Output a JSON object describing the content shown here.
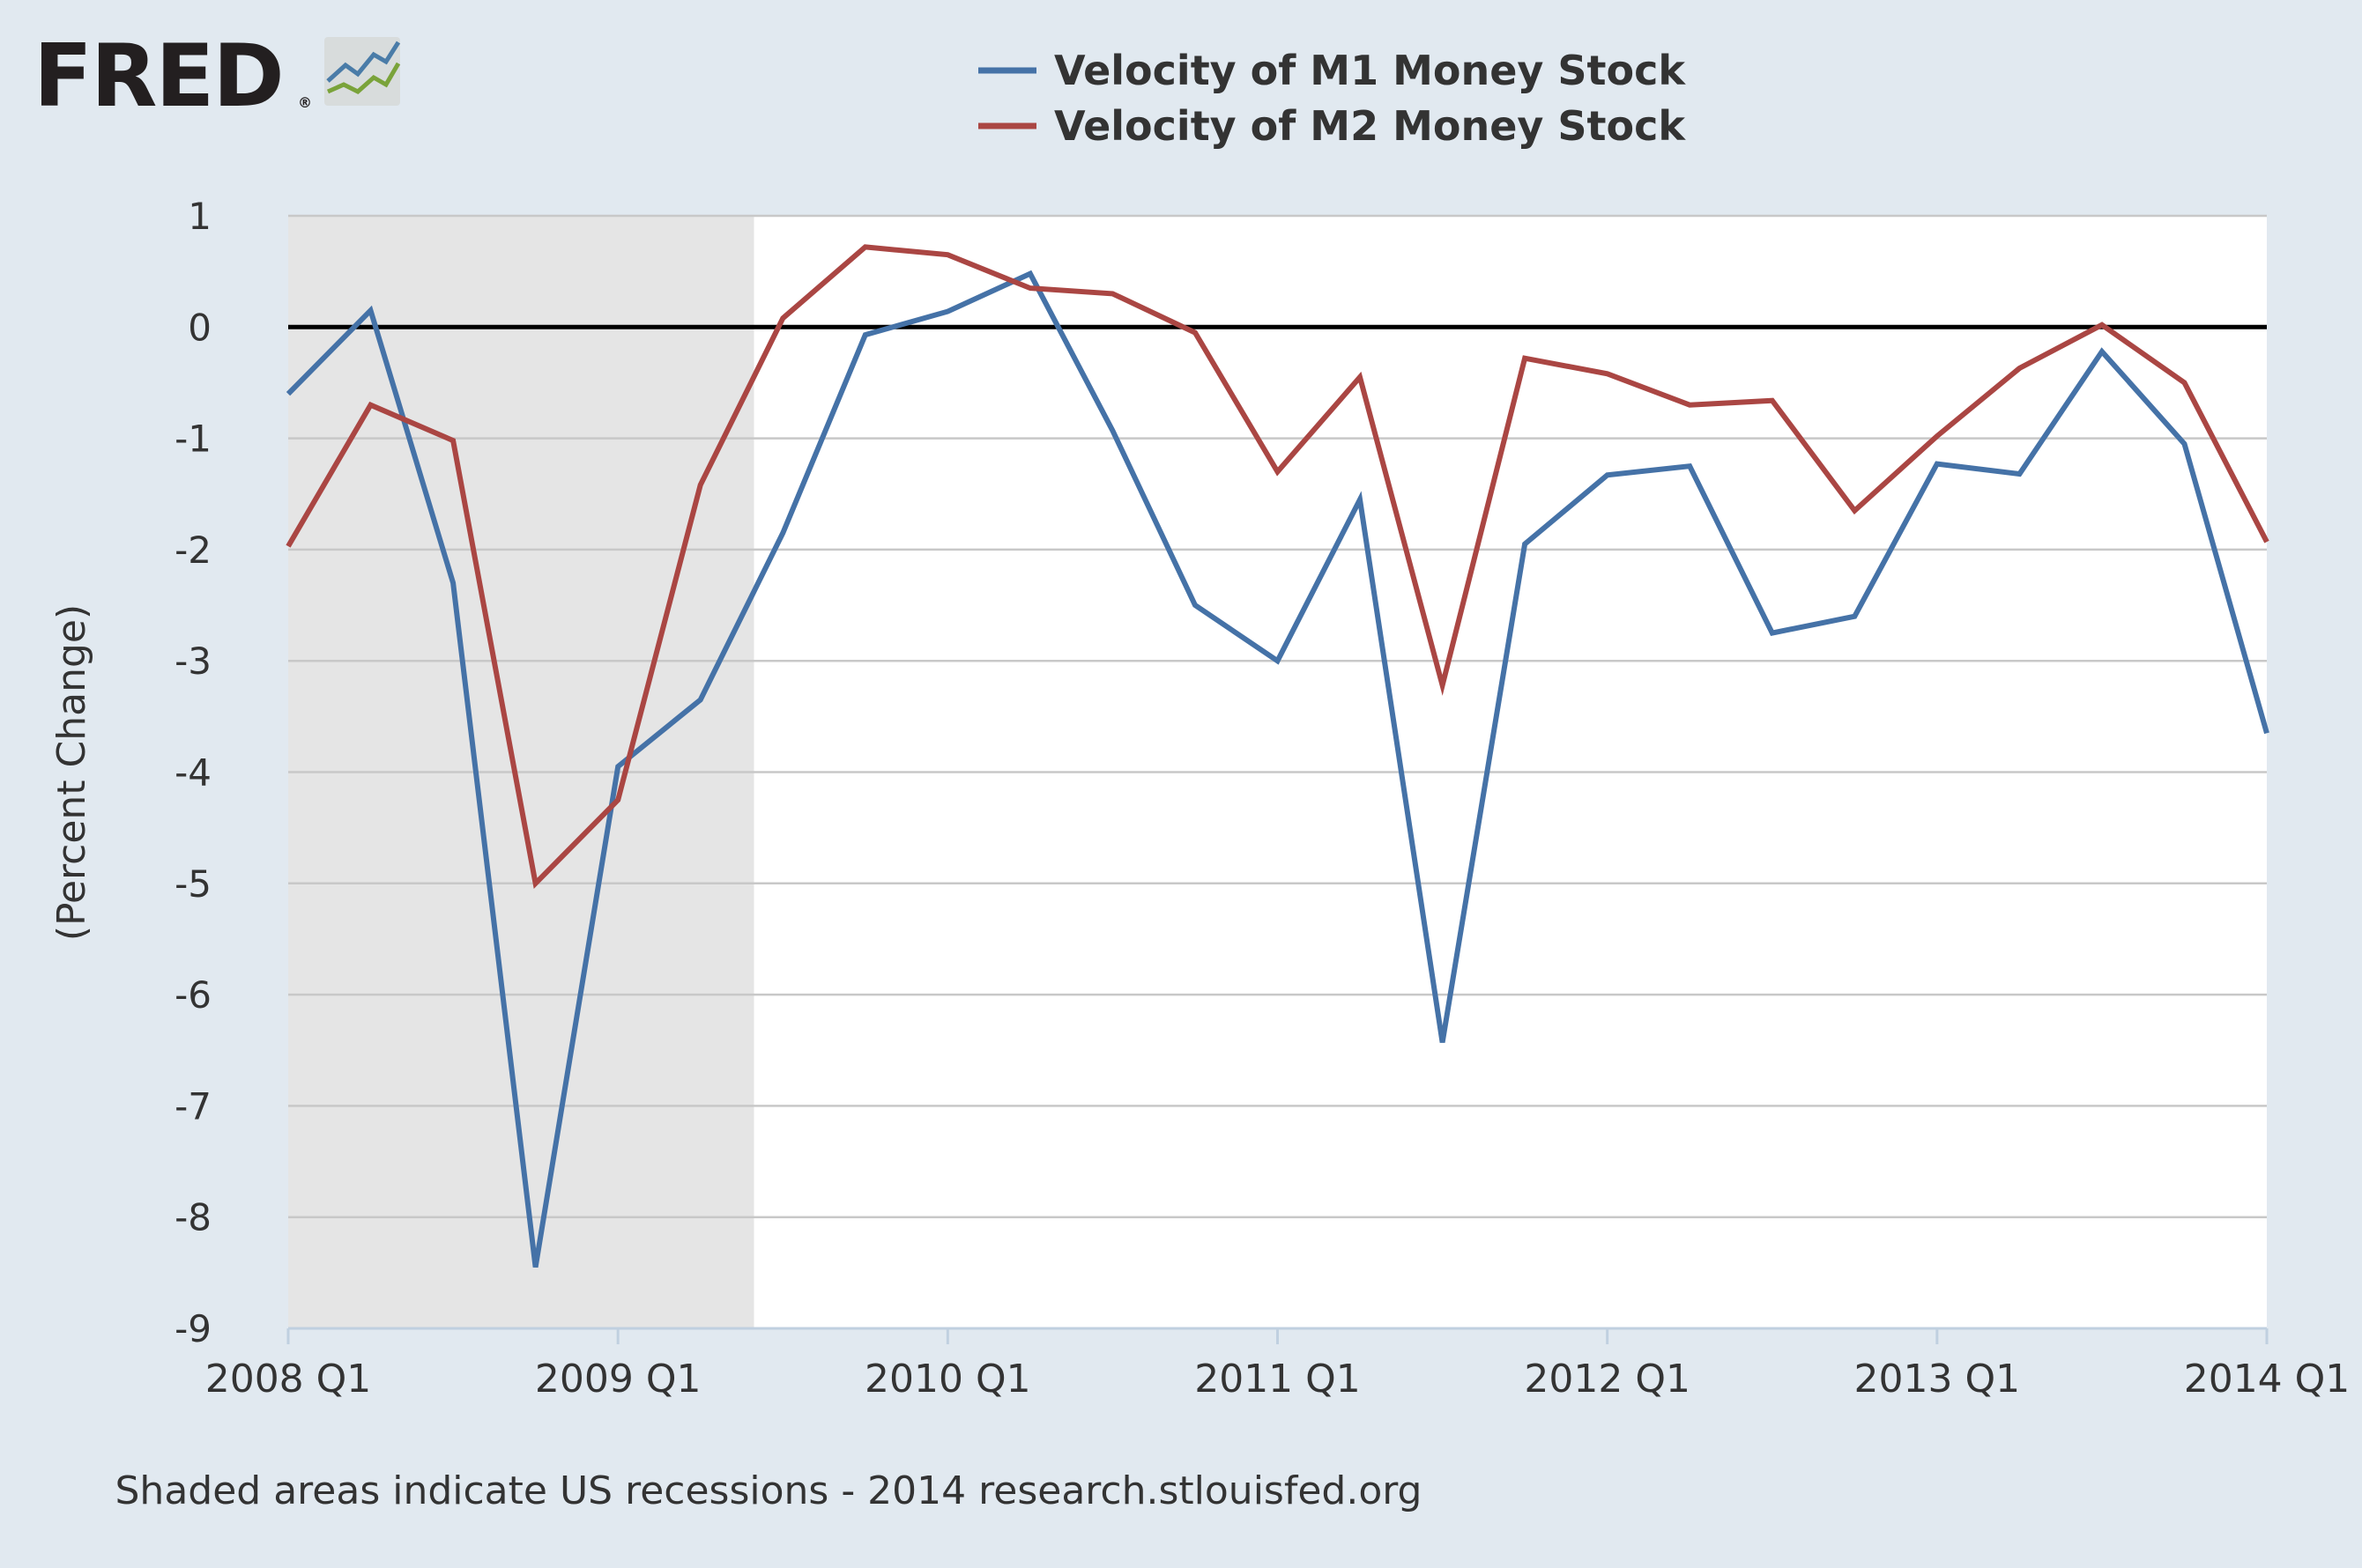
{
  "logo": {
    "text": "FRED",
    "registered": "®"
  },
  "footer": {
    "note": "Shaded areas indicate US recessions - 2014 research.stlouisfed.org"
  },
  "colors": {
    "background": "#e1e9f0",
    "plot_background": "#ffffff",
    "recession_shade": "#e5e5e5",
    "grid": "#c8c8c8",
    "zero_line": "#000000",
    "m1": "#4572a7",
    "m2": "#aa4643",
    "axis": "#c0d0e0"
  },
  "chart_data": {
    "type": "line",
    "title": "",
    "xlabel": "",
    "ylabel": "(Percent Change)",
    "ylim": [
      -9,
      1
    ],
    "yticks": [
      1,
      0,
      -1,
      -2,
      -3,
      -4,
      -5,
      -6,
      -7,
      -8,
      -9
    ],
    "xticks": [
      {
        "label": "2008 Q1",
        "q": 0
      },
      {
        "label": "2009 Q1",
        "q": 4
      },
      {
        "label": "2010 Q1",
        "q": 8
      },
      {
        "label": "2011 Q1",
        "q": 12
      },
      {
        "label": "2012 Q1",
        "q": 16
      },
      {
        "label": "2013 Q1",
        "q": 20
      },
      {
        "label": "2014 Q1",
        "q": 24
      }
    ],
    "x": [
      "2008 Q1",
      "2008 Q2",
      "2008 Q3",
      "2008 Q4",
      "2009 Q1",
      "2009 Q2",
      "2009 Q3",
      "2009 Q4",
      "2010 Q1",
      "2010 Q2",
      "2010 Q3",
      "2010 Q4",
      "2011 Q1",
      "2011 Q2",
      "2011 Q3",
      "2011 Q4",
      "2012 Q1",
      "2012 Q2",
      "2012 Q3",
      "2012 Q4",
      "2013 Q1",
      "2013 Q2",
      "2013 Q3",
      "2013 Q4",
      "2014 Q1"
    ],
    "grid": true,
    "legend_position": "top-center",
    "recession": {
      "start": "2008 Q1",
      "end": "2009 Q2"
    },
    "reference_line": 0,
    "series": [
      {
        "name": "Velocity of M1 Money Stock",
        "color": "#4572a7",
        "values": [
          -0.6,
          0.15,
          -2.3,
          -8.45,
          -3.95,
          -3.35,
          -1.85,
          -0.07,
          0.14,
          0.48,
          -0.93,
          -2.5,
          -3.0,
          -1.55,
          -6.43,
          -1.95,
          -1.33,
          -1.25,
          -2.75,
          -2.6,
          -1.23,
          -1.32,
          -0.22,
          -1.05,
          -3.65
        ]
      },
      {
        "name": "Velocity of M2 Money Stock",
        "color": "#aa4643",
        "values": [
          -1.97,
          -0.7,
          -1.02,
          -5.0,
          -4.25,
          -1.42,
          0.08,
          0.72,
          0.65,
          0.35,
          0.3,
          -0.05,
          -1.3,
          -0.45,
          -3.22,
          -0.28,
          -0.42,
          -0.7,
          -0.66,
          -1.65,
          -0.98,
          -0.37,
          0.02,
          -0.5,
          -1.93
        ]
      }
    ]
  }
}
